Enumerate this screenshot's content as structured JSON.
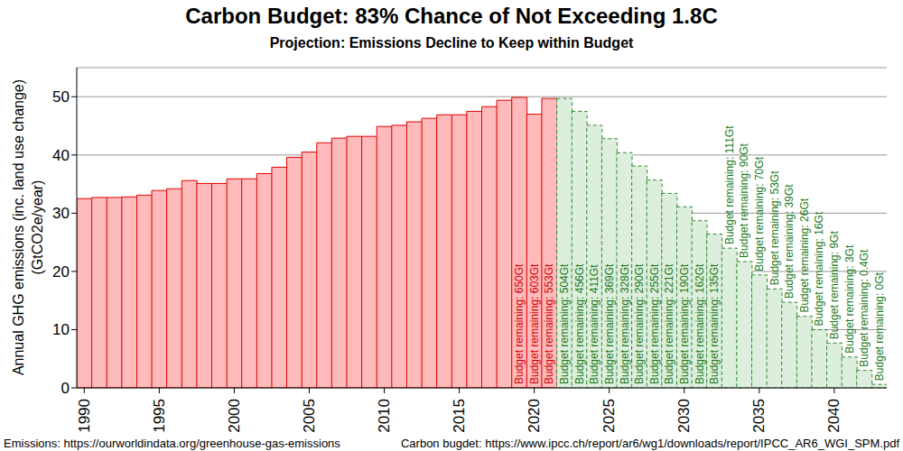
{
  "chart_data": {
    "type": "bar",
    "title": "Carbon Budget: 83% Chance of Not Exceeding 1.8C",
    "subtitle": "Projection: Emissions Decline to Keep within Budget",
    "ylabel": "Annual GHG emissions (inc. land use change)\n(GtCO2e/year)",
    "sources": [
      "Emissions: https://ourworldindata.org/greenhouse-gas-emissions",
      "Carbon bugdet: https://www.ipcc.ch/report/ar6/wg1/downloads/report/IPCC_AR6_WGI_SPM.pdf"
    ],
    "x": [
      1990,
      1991,
      1992,
      1993,
      1994,
      1995,
      1996,
      1997,
      1998,
      1999,
      2000,
      2001,
      2002,
      2003,
      2004,
      2005,
      2006,
      2007,
      2008,
      2009,
      2010,
      2011,
      2012,
      2013,
      2014,
      2015,
      2016,
      2017,
      2018,
      2019,
      2020,
      2021,
      2022,
      2023,
      2024,
      2025,
      2026,
      2027,
      2028,
      2029,
      2030,
      2031,
      2032,
      2033,
      2034,
      2035,
      2036,
      2037,
      2038,
      2039,
      2040,
      2041,
      2042,
      2043
    ],
    "series": [
      {
        "color": "#ffbbbb",
        "line_style": "solid",
        "values": [
          32.5,
          32.7,
          32.7,
          32.8,
          33.1,
          33.9,
          34.2,
          35.6,
          35.1,
          35.1,
          35.9,
          35.9,
          36.8,
          37.9,
          39.6,
          40.5,
          42.1,
          42.9,
          43.2,
          43.2,
          44.9,
          45.1,
          45.7,
          46.3,
          46.9,
          46.9,
          47.5,
          48.3,
          49.4,
          49.9,
          47.0,
          49.7,
          null,
          null,
          null,
          null,
          null,
          null,
          null,
          null,
          null,
          null,
          null,
          null,
          null,
          null,
          null,
          null,
          null,
          null,
          null,
          null,
          null,
          null
        ]
      },
      {
        "color": "#ddeedd",
        "line_style": "dashed",
        "values": [
          null,
          null,
          null,
          null,
          null,
          null,
          null,
          null,
          null,
          null,
          null,
          null,
          null,
          null,
          null,
          null,
          null,
          null,
          null,
          null,
          null,
          null,
          null,
          null,
          null,
          null,
          null,
          null,
          null,
          null,
          null,
          null,
          49.7,
          47.5,
          45.1,
          42.8,
          40.4,
          38.1,
          35.7,
          33.4,
          31.1,
          28.7,
          26.4,
          24.0,
          21.7,
          19.4,
          17.0,
          14.7,
          12.3,
          10.0,
          7.7,
          5.3,
          3.0,
          0.6
        ]
      }
    ],
    "annotations": [
      null,
      null,
      null,
      null,
      null,
      null,
      null,
      null,
      null,
      null,
      null,
      null,
      null,
      null,
      null,
      null,
      null,
      null,
      null,
      null,
      null,
      null,
      null,
      null,
      null,
      null,
      null,
      null,
      null,
      "Budget remaining: 650Gt",
      "Budget remaining: 603Gt",
      "Budget remaining: 553Gt",
      "Budget remaining: 504Gt",
      "Budget remaining: 456Gt",
      "Budget remaining: 411Gt",
      "Budget remaining: 369Gt",
      "Budget remaining: 328Gt",
      "Budget remaining: 290Gt",
      "Budget remaining: 255Gt",
      "Budget remaining: 221Gt",
      "Budget remaining: 190Gt",
      "Budget remaining: 162Gt",
      "Budget remaining: 135Gt",
      "Budget remaining: 111Gt",
      "Budget remaining: 90Gt",
      "Budget remaining: 70Gt",
      "Budget remaining: 53Gt",
      "Budget remaining: 39Gt",
      "Budget remaining: 26Gt",
      "Budget remaining: 16Gt",
      "Budget remaining: 9Gt",
      "Budget remaining: 3Gt",
      "Budget remaining: 0.4Gt",
      "Budget remaining: 0Gt"
    ],
    "xlim": [
      1989.5,
      2043.5
    ],
    "xticks": [
      1990,
      1995,
      2000,
      2005,
      2010,
      2015,
      2020,
      2025,
      2030,
      2035,
      2040
    ],
    "ylim": [
      0,
      55
    ],
    "yticks": [
      0,
      10,
      20,
      30,
      40,
      50
    ],
    "grid": true
  }
}
